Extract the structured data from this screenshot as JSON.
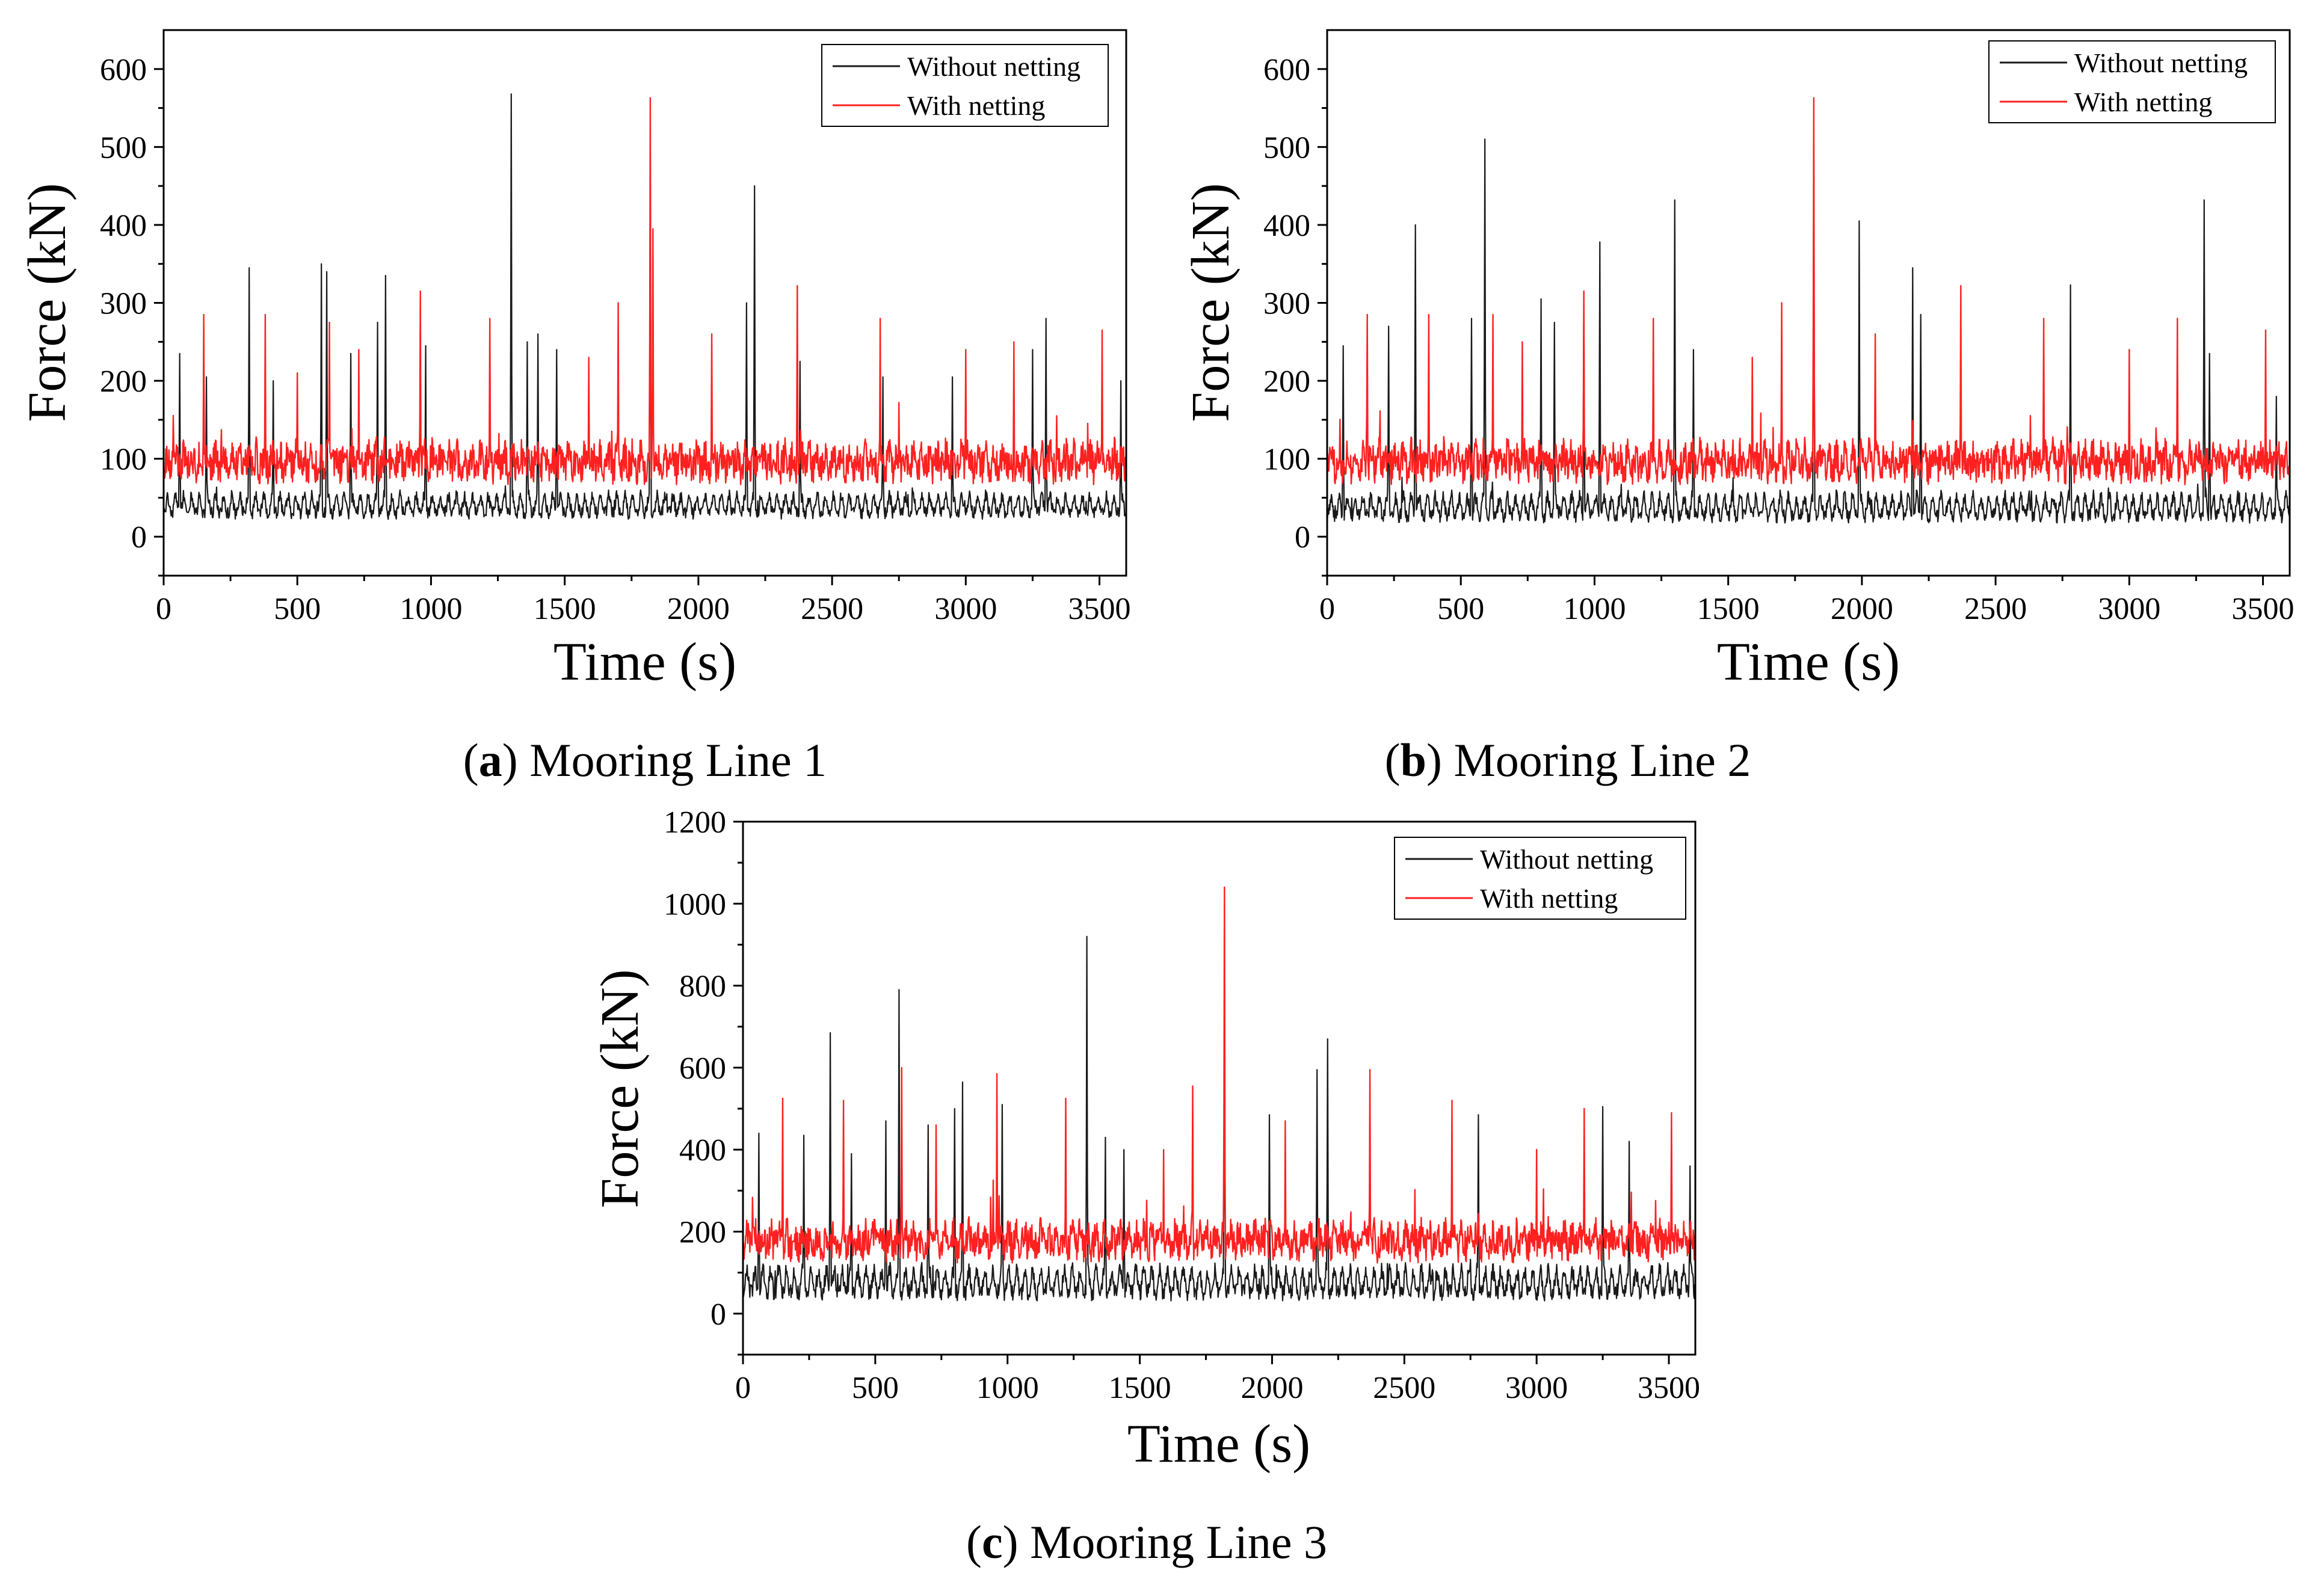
{
  "figure": {
    "colors": {
      "without": "#1a1a1a",
      "with": "#ff2020"
    }
  },
  "chart_data": [
    {
      "type": "line",
      "panel_label": "a",
      "caption_text": "Mooring Line 1",
      "xlabel": "Time (s)",
      "ylabel": "Force (kN)",
      "xlim": [
        0,
        3600
      ],
      "ylim": [
        -50,
        650
      ],
      "xticks": [
        0,
        500,
        1000,
        1500,
        2000,
        2500,
        3000,
        3500
      ],
      "yticks": [
        0,
        100,
        200,
        300,
        400,
        500,
        600
      ],
      "legend": [
        "Without netting",
        "With netting"
      ],
      "legend_position": "top-right",
      "series": [
        {
          "name": "Without netting",
          "base": 38,
          "amp": 22,
          "period": 30,
          "noise": 8,
          "peaks": [
            [
              60,
              235
            ],
            [
              160,
              205
            ],
            [
              320,
              345
            ],
            [
              410,
              200
            ],
            [
              590,
              350
            ],
            [
              610,
              340
            ],
            [
              700,
              235
            ],
            [
              800,
              275
            ],
            [
              830,
              335
            ],
            [
              980,
              245
            ],
            [
              1300,
              568
            ],
            [
              1360,
              250
            ],
            [
              1400,
              260
            ],
            [
              1470,
              240
            ],
            [
              1820,
              480
            ],
            [
              2180,
              300
            ],
            [
              2210,
              450
            ],
            [
              2380,
              225
            ],
            [
              2690,
              205
            ],
            [
              2950,
              205
            ],
            [
              3250,
              240
            ],
            [
              3300,
              280
            ],
            [
              3580,
              200
            ]
          ]
        },
        {
          "name": "With netting",
          "base": 95,
          "amp": 18,
          "period": 30,
          "noise": 22,
          "peaks": [
            [
              150,
              285
            ],
            [
              380,
              285
            ],
            [
              500,
              210
            ],
            [
              620,
              275
            ],
            [
              730,
              240
            ],
            [
              960,
              315
            ],
            [
              1220,
              280
            ],
            [
              1590,
              230
            ],
            [
              1700,
              300
            ],
            [
              1820,
              563
            ],
            [
              1830,
              395
            ],
            [
              2050,
              260
            ],
            [
              2370,
              322
            ],
            [
              2680,
              280
            ],
            [
              3000,
              240
            ],
            [
              3180,
              250
            ],
            [
              3510,
              265
            ]
          ]
        }
      ]
    },
    {
      "type": "line",
      "panel_label": "b",
      "caption_text": "Mooring Line 2",
      "xlabel": "Time (s)",
      "ylabel": "Force (kN)",
      "xlim": [
        0,
        3600
      ],
      "ylim": [
        -50,
        650
      ],
      "xticks": [
        0,
        500,
        1000,
        1500,
        2000,
        2500,
        3000,
        3500
      ],
      "yticks": [
        0,
        100,
        200,
        300,
        400,
        500,
        600
      ],
      "legend": [
        "Without netting",
        "With netting"
      ],
      "legend_position": "top-right",
      "series": [
        {
          "name": "Without netting",
          "base": 35,
          "amp": 25,
          "period": 30,
          "noise": 9,
          "peaks": [
            [
              60,
              245
            ],
            [
              230,
              270
            ],
            [
              330,
              400
            ],
            [
              540,
              280
            ],
            [
              590,
              510
            ],
            [
              800,
              305
            ],
            [
              850,
              275
            ],
            [
              960,
              300
            ],
            [
              1020,
              378
            ],
            [
              1300,
              432
            ],
            [
              1370,
              240
            ],
            [
              1820,
              490
            ],
            [
              1990,
              405
            ],
            [
              2190,
              345
            ],
            [
              2220,
              285
            ],
            [
              2780,
              323
            ],
            [
              3300,
              235
            ],
            [
              3280,
              432
            ],
            [
              3550,
              180
            ]
          ]
        },
        {
          "name": "With netting",
          "base": 95,
          "amp": 18,
          "period": 30,
          "noise": 22,
          "peaks": [
            [
              150,
              285
            ],
            [
              380,
              285
            ],
            [
              620,
              285
            ],
            [
              730,
              250
            ],
            [
              960,
              315
            ],
            [
              1220,
              280
            ],
            [
              1590,
              230
            ],
            [
              1700,
              300
            ],
            [
              1820,
              563
            ],
            [
              2050,
              260
            ],
            [
              2370,
              322
            ],
            [
              2680,
              280
            ],
            [
              3000,
              240
            ],
            [
              3180,
              280
            ],
            [
              3510,
              265
            ]
          ]
        }
      ]
    },
    {
      "type": "line",
      "panel_label": "c",
      "caption_text": "Mooring Line 3",
      "xlabel": "Time (s)",
      "ylabel": "Force (kN)",
      "xlim": [
        0,
        3600
      ],
      "ylim": [
        -100,
        1200
      ],
      "xticks": [
        0,
        500,
        1000,
        1500,
        2000,
        2500,
        3000,
        3500
      ],
      "yticks": [
        0,
        200,
        400,
        600,
        800,
        1000,
        1200
      ],
      "legend": [
        "Without netting",
        "With netting"
      ],
      "legend_position": "top-right",
      "series": [
        {
          "name": "Without netting",
          "base": 70,
          "amp": 55,
          "period": 30,
          "noise": 20,
          "peaks": [
            [
              60,
              440
            ],
            [
              230,
              435
            ],
            [
              330,
              685
            ],
            [
              410,
              390
            ],
            [
              540,
              470
            ],
            [
              590,
              790
            ],
            [
              700,
              460
            ],
            [
              800,
              500
            ],
            [
              830,
              565
            ],
            [
              980,
              510
            ],
            [
              1300,
              920
            ],
            [
              1370,
              430
            ],
            [
              1440,
              400
            ],
            [
              1820,
              800
            ],
            [
              1990,
              485
            ],
            [
              2170,
              595
            ],
            [
              2210,
              670
            ],
            [
              2780,
              485
            ],
            [
              3250,
              505
            ],
            [
              3350,
              420
            ],
            [
              3580,
              360
            ]
          ]
        },
        {
          "name": "With netting",
          "base": 175,
          "amp": 35,
          "period": 30,
          "noise": 40,
          "peaks": [
            [
              150,
              525
            ],
            [
              380,
              520
            ],
            [
              600,
              600
            ],
            [
              730,
              460
            ],
            [
              960,
              585
            ],
            [
              1220,
              525
            ],
            [
              1590,
              400
            ],
            [
              1700,
              555
            ],
            [
              1820,
              1040
            ],
            [
              2050,
              470
            ],
            [
              2370,
              595
            ],
            [
              2680,
              520
            ],
            [
              3000,
              400
            ],
            [
              3180,
              500
            ],
            [
              3510,
              490
            ]
          ]
        }
      ]
    }
  ]
}
